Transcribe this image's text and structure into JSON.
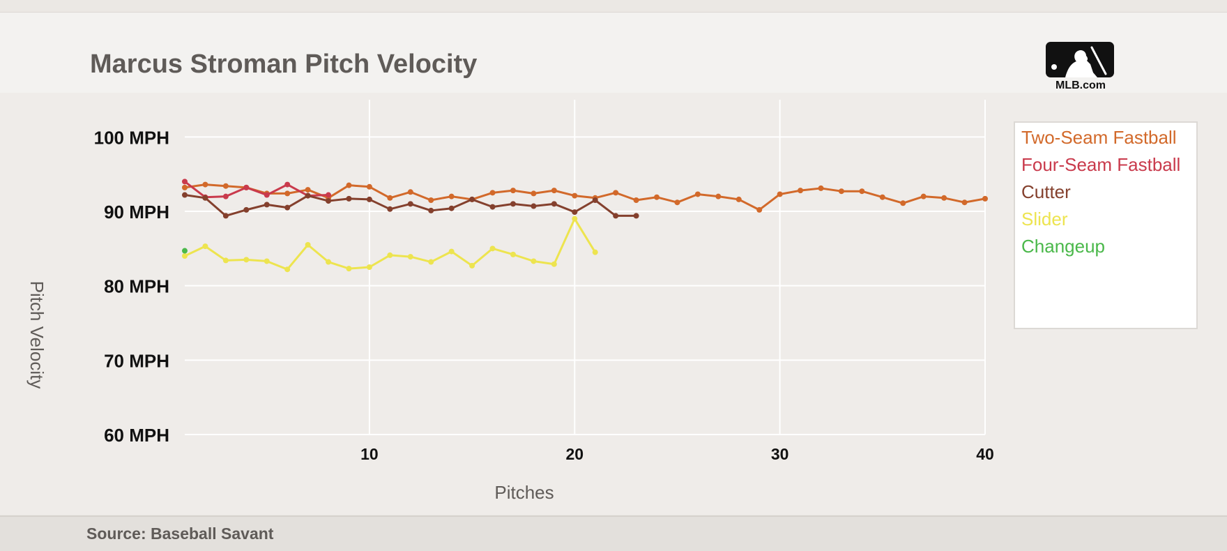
{
  "header": {
    "title": "Marcus Stroman Pitch Velocity",
    "logo_text": "MLB.com"
  },
  "footer": {
    "source": "Source: Baseball Savant"
  },
  "colors": {
    "two_seam": "#d2692a",
    "four_seam": "#c93a4c",
    "cutter": "#84402d",
    "slider": "#ede44f",
    "changeup": "#4ab84a"
  },
  "chart_data": {
    "type": "line",
    "title": "Marcus Stroman Pitch Velocity",
    "xlabel": "Pitches",
    "ylabel": "Pitch Velocity",
    "xlim": [
      1,
      40
    ],
    "ylim": [
      60,
      105
    ],
    "xticks": [
      10,
      20,
      30,
      40
    ],
    "yticks": [
      60,
      70,
      80,
      90,
      100
    ],
    "ytick_labels": [
      "60 MPH",
      "70 MPH",
      "80 MPH",
      "90 MPH",
      "100 MPH"
    ],
    "grid": true,
    "legend_position": "right",
    "series": [
      {
        "name": "Two-Seam Fastball",
        "color": "#d2692a",
        "values": [
          93.2,
          93.6,
          93.4,
          93.2,
          92.4,
          92.4,
          92.9,
          91.8,
          93.5,
          93.3,
          91.8,
          92.6,
          91.5,
          92.0,
          91.6,
          92.5,
          92.8,
          92.4,
          92.8,
          92.1,
          91.8,
          92.5,
          91.5,
          91.9,
          91.2,
          92.3,
          92.0,
          91.6,
          90.2,
          92.3,
          92.8,
          93.1,
          92.7,
          92.7,
          91.9,
          91.1,
          92.0,
          91.8,
          91.2,
          91.7
        ]
      },
      {
        "name": "Four-Seam Fastball",
        "color": "#c93a4c",
        "values": [
          94.0,
          91.9,
          92.0,
          93.2,
          92.2,
          93.6,
          92.1,
          92.2
        ]
      },
      {
        "name": "Cutter",
        "color": "#84402d",
        "values": [
          92.2,
          91.8,
          89.4,
          90.2,
          90.9,
          90.5,
          92.1,
          91.4,
          91.7,
          91.6,
          90.3,
          91.0,
          90.1,
          90.4,
          91.6,
          90.6,
          91.0,
          90.7,
          91.0,
          89.9,
          91.5,
          89.4,
          89.4
        ]
      },
      {
        "name": "Slider",
        "color": "#ede44f",
        "values": [
          84.0,
          85.3,
          83.4,
          83.5,
          83.3,
          82.2,
          85.5,
          83.2,
          82.3,
          82.5,
          84.1,
          83.9,
          83.2,
          84.6,
          82.7,
          85.0,
          84.2,
          83.3,
          82.9,
          89.0,
          84.5
        ]
      },
      {
        "name": "Changeup",
        "color": "#4ab84a",
        "values": [
          84.7
        ]
      }
    ]
  }
}
